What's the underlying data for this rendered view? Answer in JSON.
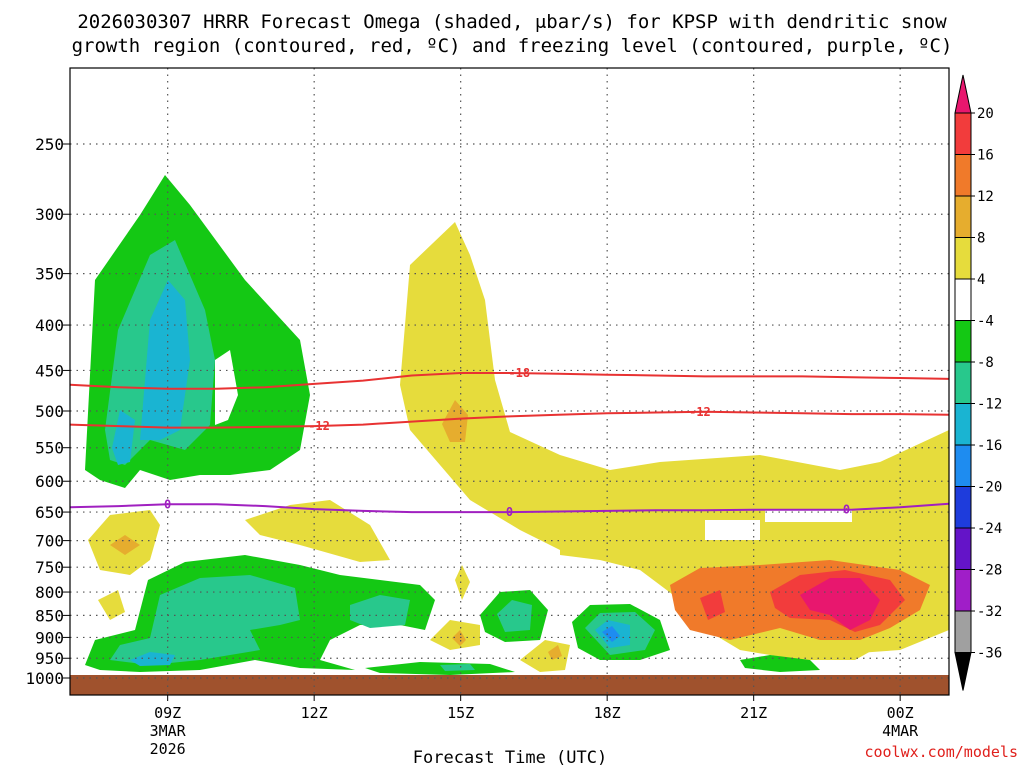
{
  "chart_data": {
    "type": "time-height contour",
    "title_line1": "2026030307 HRRR Forecast Omega (shaded, μbar/s) for KPSP with dendritic snow",
    "title_line2": "growth region (contoured, red, ºC) and freezing level (contoured, purple, ºC)",
    "xlabel": "Forecast Time (UTC)",
    "credit": "coolwx.com/models",
    "x_range_hours": [
      7,
      25
    ],
    "y_range_hpa": [
      1000,
      200
    ],
    "y_ticks": [
      250,
      300,
      350,
      400,
      450,
      500,
      550,
      600,
      650,
      700,
      750,
      800,
      850,
      900,
      950,
      1000
    ],
    "x_ticks": [
      {
        "hour": 9,
        "label": "09Z",
        "sub1": "3MAR",
        "sub2": "2026"
      },
      {
        "hour": 12,
        "label": "12Z",
        "sub1": "",
        "sub2": ""
      },
      {
        "hour": 15,
        "label": "15Z",
        "sub1": "",
        "sub2": ""
      },
      {
        "hour": 18,
        "label": "18Z",
        "sub1": "",
        "sub2": ""
      },
      {
        "hour": 21,
        "label": "21Z",
        "sub1": "",
        "sub2": ""
      },
      {
        "hour": 24,
        "label": "00Z",
        "sub1": "4MAR",
        "sub2": ""
      }
    ],
    "colorbar": {
      "labels": [
        "20",
        "16",
        "12",
        "8",
        "4",
        "-4",
        "-8",
        "-12",
        "-16",
        "-20",
        "-24",
        "-28",
        "-32",
        "-36"
      ],
      "colors": [
        "#e8176e",
        "#f23c3c",
        "#f07a2a",
        "#e6ad2e",
        "#e6dc3c",
        "#ffffff",
        "#14c814",
        "#28c88c",
        "#1ab4d2",
        "#1e8cf0",
        "#1e3cdc",
        "#6414c8",
        "#a01ec8",
        "#a0a0a0",
        "#000000"
      ]
    },
    "contours": [
      {
        "name": "dgz-minus18",
        "label": "-18",
        "color": "#e83232",
        "points": [
          [
            7,
            467
          ],
          [
            8,
            470
          ],
          [
            9,
            472
          ],
          [
            10,
            472
          ],
          [
            11,
            470
          ],
          [
            12,
            466
          ],
          [
            13,
            462
          ],
          [
            14,
            456
          ],
          [
            15,
            453
          ],
          [
            16,
            453
          ],
          [
            17,
            454
          ],
          [
            18,
            455
          ],
          [
            19,
            456
          ],
          [
            20,
            457
          ],
          [
            21,
            457
          ],
          [
            22,
            457
          ],
          [
            23,
            458
          ],
          [
            24,
            459
          ],
          [
            25,
            460
          ]
        ],
        "label_at": 16.2
      },
      {
        "name": "dgz-minus12",
        "label": "-12",
        "color": "#e83232",
        "points": [
          [
            7,
            518
          ],
          [
            8,
            520
          ],
          [
            9,
            522
          ],
          [
            10,
            522
          ],
          [
            11,
            521
          ],
          [
            12,
            520
          ],
          [
            13,
            518
          ],
          [
            14,
            514
          ],
          [
            15,
            510
          ],
          [
            16,
            507
          ],
          [
            17,
            505
          ],
          [
            18,
            503
          ],
          [
            19,
            502
          ],
          [
            20,
            501
          ],
          [
            21,
            502
          ],
          [
            22,
            503
          ],
          [
            23,
            504
          ],
          [
            24,
            504
          ],
          [
            25,
            505
          ]
        ],
        "label_at": 12.1
      },
      {
        "name": "dgz-minus12b",
        "label": "-12",
        "color": "#e83232",
        "points": [],
        "label_at": 19.9
      },
      {
        "name": "freezing-level",
        "label": "0",
        "color": "#a020c0",
        "points": [
          [
            7,
            642
          ],
          [
            8,
            640
          ],
          [
            9,
            637
          ],
          [
            10,
            637
          ],
          [
            11,
            640
          ],
          [
            12,
            645
          ],
          [
            13,
            648
          ],
          [
            14,
            650
          ],
          [
            15,
            650
          ],
          [
            16,
            650
          ],
          [
            17,
            649
          ],
          [
            18,
            648
          ],
          [
            19,
            647
          ],
          [
            20,
            647
          ],
          [
            21,
            646
          ],
          [
            22,
            646
          ],
          [
            23,
            646
          ],
          [
            24,
            642
          ],
          [
            25,
            636
          ]
        ],
        "label_at": [
          9.0,
          16.0,
          22.9
        ]
      }
    ]
  }
}
